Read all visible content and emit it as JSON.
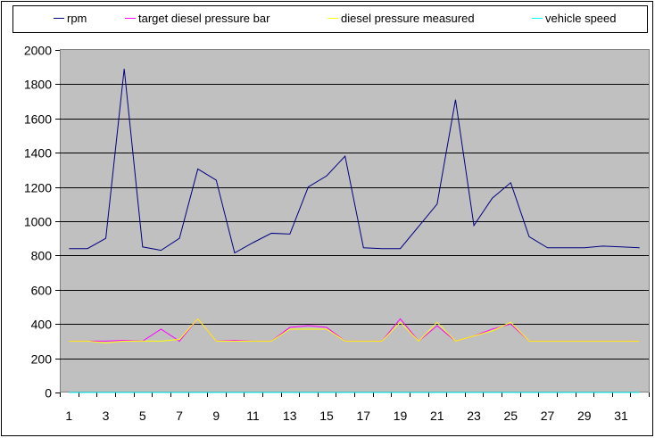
{
  "chart_data": {
    "type": "line",
    "title": "",
    "xlabel": "",
    "ylabel": "",
    "ylim": [
      0,
      2000
    ],
    "yticks": [
      0,
      200,
      400,
      600,
      800,
      1000,
      1200,
      1400,
      1600,
      1800,
      2000
    ],
    "x": [
      1,
      2,
      3,
      4,
      5,
      6,
      7,
      8,
      9,
      10,
      11,
      12,
      13,
      14,
      15,
      16,
      17,
      18,
      19,
      20,
      21,
      22,
      23,
      24,
      25,
      26,
      27,
      28,
      29,
      30,
      31,
      32
    ],
    "xtick_labels": [
      "1",
      "3",
      "5",
      "7",
      "9",
      "11",
      "13",
      "15",
      "17",
      "19",
      "21",
      "23",
      "25",
      "27",
      "29",
      "31"
    ],
    "grid": true,
    "legend_position": "top",
    "series": [
      {
        "name": "rpm",
        "color": "#000080",
        "values": [
          840,
          840,
          900,
          1890,
          850,
          830,
          900,
          1305,
          1240,
          815,
          875,
          930,
          925,
          1200,
          1265,
          1380,
          845,
          840,
          840,
          970,
          1100,
          1710,
          975,
          1135,
          1225,
          910,
          845,
          845,
          845,
          855,
          850,
          845
        ]
      },
      {
        "name": "target diesel pressure bar",
        "color": "#ff00ff",
        "values": [
          300,
          300,
          300,
          305,
          300,
          370,
          300,
          430,
          300,
          305,
          300,
          300,
          380,
          390,
          380,
          300,
          300,
          300,
          430,
          300,
          390,
          300,
          330,
          370,
          400,
          300,
          300,
          300,
          300,
          300,
          300,
          300
        ]
      },
      {
        "name": "diesel pressure measured",
        "color": "#ffff00",
        "values": [
          300,
          300,
          290,
          300,
          300,
          300,
          310,
          430,
          300,
          300,
          300,
          300,
          370,
          370,
          370,
          300,
          300,
          300,
          410,
          300,
          410,
          300,
          330,
          360,
          410,
          300,
          300,
          300,
          300,
          300,
          300,
          300
        ]
      },
      {
        "name": "vehicle speed",
        "color": "#00ffff",
        "values": [
          0,
          0,
          0,
          0,
          0,
          0,
          0,
          0,
          0,
          0,
          0,
          0,
          0,
          0,
          0,
          0,
          0,
          0,
          0,
          0,
          0,
          0,
          0,
          0,
          0,
          0,
          0,
          0,
          0,
          0,
          0,
          0
        ]
      }
    ]
  }
}
